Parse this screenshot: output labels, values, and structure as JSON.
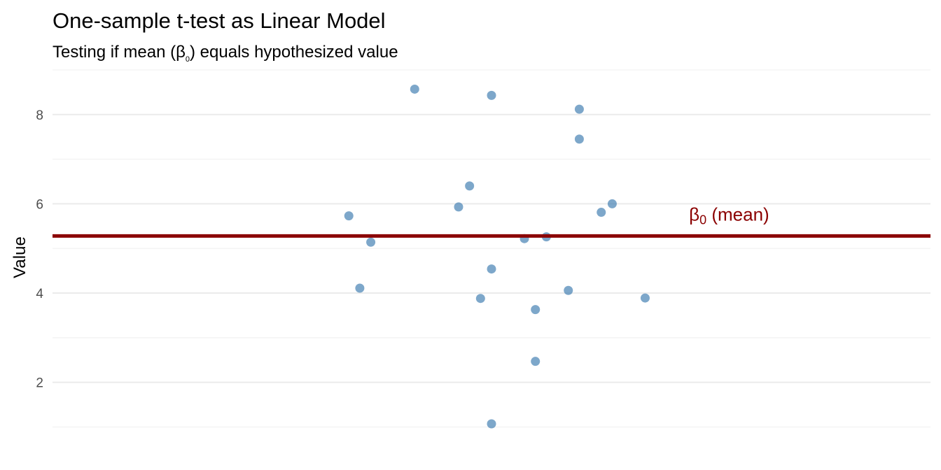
{
  "chart_data": {
    "type": "scatter",
    "title": "One-sample t-test as Linear Model",
    "subtitle_prefix": "Testing if mean (",
    "subtitle_symbol": "β",
    "subtitle_subscript": "0",
    "subtitle_suffix": ") equals hypothesized value",
    "xlabel": "",
    "ylabel": "Value",
    "ylim": [
      0.6,
      9.0
    ],
    "y_ticks": [
      2,
      4,
      6,
      8
    ],
    "grid": true,
    "x_jitter_range": [
      0.6,
      1.4
    ],
    "points": [
      {
        "x": 0.93,
        "y": 8.57
      },
      {
        "x": 1.0,
        "y": 8.43
      },
      {
        "x": 1.08,
        "y": 8.12
      },
      {
        "x": 1.08,
        "y": 7.45
      },
      {
        "x": 0.98,
        "y": 6.4
      },
      {
        "x": 1.11,
        "y": 6.0
      },
      {
        "x": 0.97,
        "y": 5.93
      },
      {
        "x": 1.1,
        "y": 5.81
      },
      {
        "x": 0.87,
        "y": 5.73
      },
      {
        "x": 1.05,
        "y": 5.26
      },
      {
        "x": 1.03,
        "y": 5.22
      },
      {
        "x": 0.89,
        "y": 5.14
      },
      {
        "x": 1.0,
        "y": 4.54
      },
      {
        "x": 0.88,
        "y": 4.11
      },
      {
        "x": 1.07,
        "y": 4.06
      },
      {
        "x": 1.14,
        "y": 3.89
      },
      {
        "x": 0.99,
        "y": 3.88
      },
      {
        "x": 1.04,
        "y": 3.63
      },
      {
        "x": 1.04,
        "y": 2.47
      },
      {
        "x": 1.0,
        "y": 1.07
      }
    ],
    "hline": {
      "y": 5.28,
      "label_symbol": "β",
      "label_subscript": "0",
      "label_suffix": " (mean)",
      "label_x": 1.18
    },
    "colors": {
      "point": "#4682b4",
      "line": "#8b0000",
      "annotation": "#8b0000"
    }
  }
}
